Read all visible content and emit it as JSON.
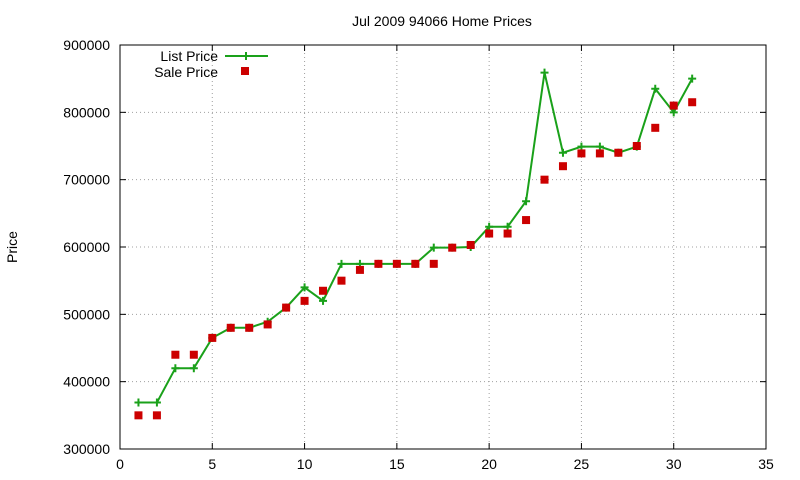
{
  "chart_data": {
    "type": "line",
    "title": "Jul 2009 94066 Home Prices",
    "xlabel": "",
    "ylabel": "Price",
    "xlim": [
      0,
      35
    ],
    "ylim": [
      300000,
      900000
    ],
    "x_ticks": [
      0,
      5,
      10,
      15,
      20,
      25,
      30,
      35
    ],
    "y_ticks": [
      300000,
      400000,
      500000,
      600000,
      700000,
      800000,
      900000
    ],
    "grid": true,
    "legend_position": "top-left",
    "series": [
      {
        "name": "List Price",
        "style": "line-with-plus-markers",
        "color": "#1aa11a",
        "x": [
          1,
          2,
          3,
          4,
          5,
          6,
          7,
          8,
          9,
          10,
          11,
          12,
          13,
          14,
          15,
          16,
          17,
          18,
          19,
          20,
          21,
          22,
          23,
          24,
          25,
          26,
          27,
          28,
          29,
          30,
          31
        ],
        "values": [
          369000,
          369000,
          420000,
          420000,
          465000,
          480000,
          480000,
          489000,
          510000,
          540000,
          520000,
          575000,
          575000,
          575000,
          575000,
          575000,
          599000,
          599000,
          600000,
          630000,
          630000,
          668000,
          859000,
          740000,
          749000,
          749000,
          740000,
          749000,
          835000,
          800000,
          850000
        ]
      },
      {
        "name": "Sale Price",
        "style": "square-markers",
        "color": "#cc0000",
        "x": [
          1,
          2,
          3,
          4,
          5,
          6,
          7,
          8,
          9,
          10,
          11,
          12,
          13,
          14,
          15,
          16,
          17,
          18,
          19,
          20,
          21,
          22,
          23,
          24,
          25,
          26,
          27,
          28,
          29,
          30,
          31
        ],
        "values": [
          350000,
          350000,
          440000,
          440000,
          465000,
          480000,
          480000,
          485000,
          510000,
          520000,
          535000,
          550000,
          566000,
          575000,
          575000,
          575000,
          575000,
          599000,
          603000,
          620000,
          620000,
          640000,
          700000,
          720000,
          739000,
          739000,
          740000,
          750000,
          777000,
          810000,
          815000
        ]
      }
    ]
  }
}
